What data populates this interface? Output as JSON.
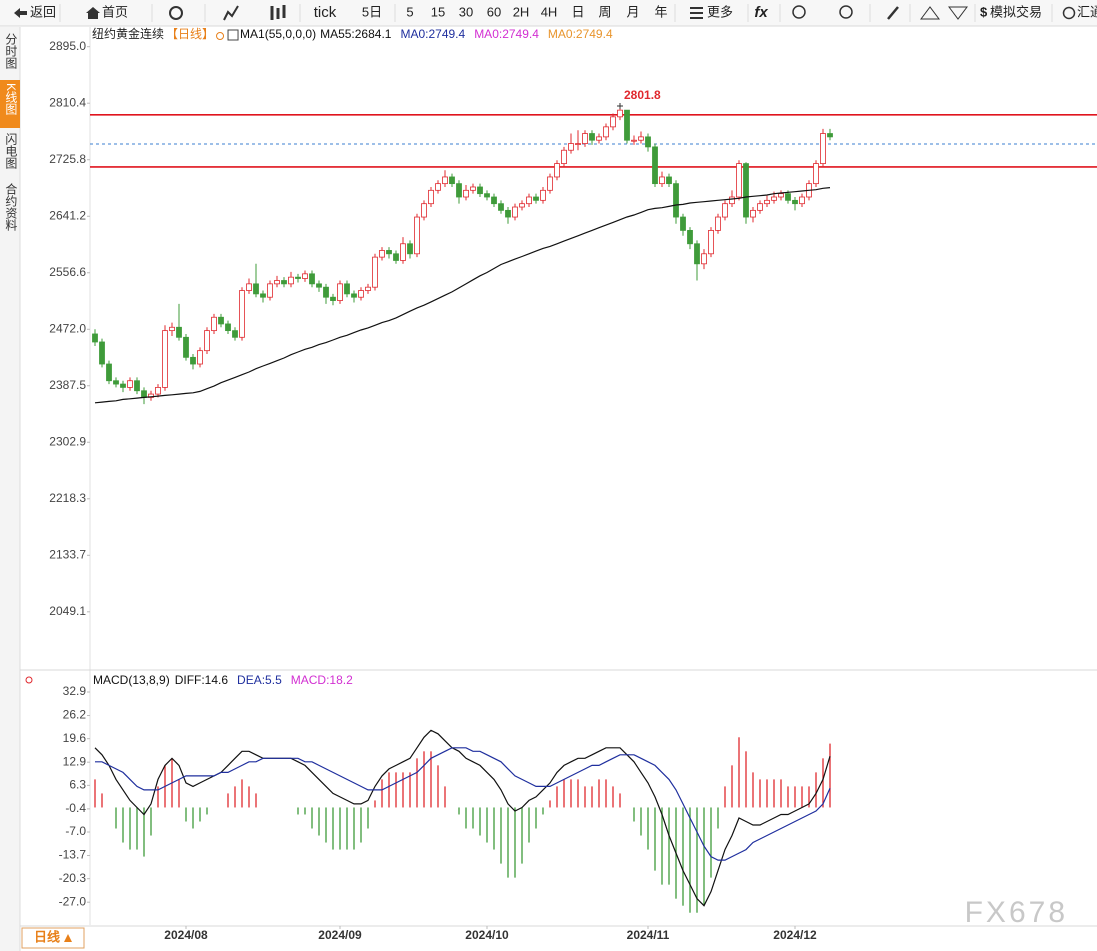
{
  "toolbar": {
    "back": "返回",
    "home": "首页",
    "tick": "tick",
    "periods": [
      "5日",
      "5",
      "15",
      "30",
      "60",
      "2H",
      "4H",
      "日",
      "周",
      "月",
      "年"
    ],
    "more": "更多",
    "fx": "fx",
    "trade": "模拟交易",
    "news": "汇通"
  },
  "sidebar": [
    "分时图",
    "K线图",
    "闪电图",
    "合约资料"
  ],
  "sidebar_active": 1,
  "bottom_tab": "日线",
  "watermark": "FX678",
  "chart_data": [
    {
      "type": "candlestick",
      "title": "纽约黄金连续",
      "period": "【日线】",
      "indicator": "MA1(55,0,0,0)",
      "legend": [
        {
          "text": "MA55:2684.1",
          "color": "#111111"
        },
        {
          "text": "MA0:2749.4",
          "color": "#1f2f9e"
        },
        {
          "text": "MA0:2749.4",
          "color": "#d22fd2"
        },
        {
          "text": "MA0:2749.4",
          "color": "#e8942c"
        }
      ],
      "candles": {
        "up_color": "#e0282e",
        "down_color": "#3f9b3a",
        "open": [
          2465,
          2453,
          2420,
          2395,
          2390,
          2385,
          2395,
          2380,
          2370,
          2375,
          2385,
          2470,
          2475,
          2460,
          2430,
          2420,
          2440,
          2470,
          2490,
          2480,
          2470,
          2460,
          2530,
          2540,
          2525,
          2520,
          2540,
          2545,
          2540,
          2550,
          2548,
          2555,
          2540,
          2535,
          2520,
          2515,
          2540,
          2525,
          2520,
          2530,
          2535,
          2580,
          2590,
          2585,
          2575,
          2600,
          2585,
          2640,
          2660,
          2680,
          2690,
          2700,
          2690,
          2670,
          2680,
          2685,
          2675,
          2670,
          2660,
          2650,
          2640,
          2655,
          2660,
          2670,
          2665,
          2680,
          2700,
          2720,
          2740,
          2750,
          2750,
          2765,
          2755,
          2760,
          2775,
          2790,
          2800,
          2755,
          2755,
          2760,
          2745,
          2690,
          2700,
          2690,
          2640,
          2620,
          2600,
          2570,
          2585,
          2620,
          2640,
          2660,
          2670,
          2720,
          2640,
          2650,
          2660,
          2665,
          2670,
          2675,
          2665,
          2660,
          2670,
          2690,
          2720,
          2765
        ],
        "high": [
          2472,
          2458,
          2425,
          2400,
          2395,
          2400,
          2400,
          2385,
          2380,
          2390,
          2478,
          2482,
          2510,
          2465,
          2435,
          2445,
          2475,
          2495,
          2495,
          2485,
          2475,
          2535,
          2548,
          2570,
          2530,
          2545,
          2552,
          2550,
          2558,
          2555,
          2560,
          2560,
          2545,
          2540,
          2525,
          2545,
          2545,
          2530,
          2535,
          2540,
          2585,
          2595,
          2595,
          2590,
          2610,
          2605,
          2645,
          2665,
          2685,
          2695,
          2710,
          2705,
          2695,
          2688,
          2690,
          2690,
          2680,
          2675,
          2665,
          2655,
          2660,
          2665,
          2675,
          2675,
          2685,
          2705,
          2725,
          2745,
          2765,
          2770,
          2770,
          2770,
          2765,
          2780,
          2795,
          2801.8,
          2800,
          2762,
          2768,
          2765,
          2750,
          2708,
          2705,
          2695,
          2645,
          2625,
          2605,
          2592,
          2625,
          2645,
          2665,
          2680,
          2725,
          2722,
          2655,
          2665,
          2672,
          2678,
          2680,
          2680,
          2670,
          2675,
          2695,
          2725,
          2772,
          2772
        ],
        "low": [
          2447,
          2415,
          2390,
          2385,
          2378,
          2380,
          2375,
          2360,
          2365,
          2370,
          2380,
          2462,
          2455,
          2425,
          2412,
          2415,
          2435,
          2465,
          2475,
          2465,
          2455,
          2455,
          2525,
          2520,
          2512,
          2515,
          2535,
          2535,
          2535,
          2542,
          2543,
          2535,
          2528,
          2510,
          2508,
          2510,
          2520,
          2512,
          2515,
          2525,
          2530,
          2575,
          2578,
          2570,
          2570,
          2578,
          2580,
          2635,
          2655,
          2675,
          2685,
          2685,
          2660,
          2665,
          2675,
          2670,
          2665,
          2655,
          2645,
          2630,
          2635,
          2650,
          2655,
          2660,
          2660,
          2675,
          2695,
          2715,
          2735,
          2740,
          2745,
          2748,
          2750,
          2755,
          2770,
          2785,
          2750,
          2748,
          2750,
          2738,
          2685,
          2685,
          2685,
          2630,
          2612,
          2592,
          2545,
          2562,
          2580,
          2615,
          2635,
          2655,
          2665,
          2630,
          2632,
          2645,
          2655,
          2660,
          2665,
          2660,
          2650,
          2655,
          2665,
          2685,
          2715,
          2755
        ],
        "close": [
          2453,
          2420,
          2395,
          2390,
          2385,
          2395,
          2380,
          2370,
          2375,
          2385,
          2470,
          2475,
          2460,
          2430,
          2420,
          2440,
          2470,
          2490,
          2480,
          2470,
          2460,
          2530,
          2540,
          2525,
          2520,
          2540,
          2545,
          2540,
          2550,
          2548,
          2555,
          2540,
          2535,
          2520,
          2515,
          2540,
          2525,
          2520,
          2530,
          2535,
          2580,
          2590,
          2585,
          2575,
          2600,
          2585,
          2640,
          2660,
          2680,
          2690,
          2700,
          2690,
          2670,
          2680,
          2685,
          2675,
          2670,
          2660,
          2650,
          2640,
          2655,
          2660,
          2670,
          2665,
          2680,
          2700,
          2720,
          2740,
          2750,
          2750,
          2765,
          2755,
          2760,
          2775,
          2790,
          2800,
          2755,
          2755,
          2760,
          2745,
          2690,
          2700,
          2690,
          2640,
          2620,
          2600,
          2570,
          2585,
          2620,
          2640,
          2660,
          2670,
          2720,
          2640,
          2650,
          2660,
          2665,
          2670,
          2675,
          2665,
          2660,
          2670,
          2690,
          2720,
          2765,
          2760
        ]
      },
      "series": [
        {
          "color": "#111111",
          "values": [
            2362,
            2363,
            2364,
            2365,
            2367,
            2368,
            2369,
            2370,
            2371,
            2372,
            2373,
            2374,
            2375,
            2376,
            2377,
            2379,
            2383,
            2387,
            2392,
            2396,
            2400,
            2404,
            2408,
            2413,
            2417,
            2421,
            2425,
            2429,
            2434,
            2438,
            2442,
            2445,
            2449,
            2452,
            2456,
            2460,
            2463,
            2467,
            2471,
            2474,
            2478,
            2482,
            2485,
            2489,
            2494,
            2499,
            2504,
            2508,
            2513,
            2518,
            2523,
            2528,
            2534,
            2540,
            2546,
            2552,
            2557,
            2563,
            2569,
            2573,
            2577,
            2581,
            2585,
            2589,
            2593,
            2596,
            2600,
            2604,
            2608,
            2612,
            2616,
            2620,
            2624,
            2628,
            2632,
            2636,
            2640,
            2643,
            2647,
            2651,
            2653,
            2654,
            2656,
            2658,
            2659,
            2661,
            2662,
            2663,
            2664,
            2665,
            2666,
            2667,
            2668,
            2670,
            2671,
            2672,
            2673,
            2675,
            2676,
            2677,
            2678,
            2679,
            2680,
            2681,
            2683,
            2684.1
          ]
        }
      ],
      "hlines": [
        {
          "value": 2793,
          "color": "#e0141e",
          "style": "solid"
        },
        {
          "value": 2715,
          "color": "#e0141e",
          "style": "solid"
        },
        {
          "value": 2749.4,
          "color": "#3b7fd0",
          "style": "dashed"
        }
      ],
      "annotations": [
        {
          "text": "2801.8",
          "value": 2801.8,
          "color": "#e0282e"
        }
      ],
      "ylim": [
        1965,
        2908
      ],
      "yticks": [
        2049.1,
        2133.7,
        2218.3,
        2302.9,
        2387.5,
        {
          "value": 2472,
          "label": "2472.0"
        },
        2556.6,
        2641.2,
        2725.8,
        2810.4,
        {
          "value": 2895,
          "label": "2895.0"
        }
      ],
      "grid": false
    },
    {
      "type": "macd",
      "title": "MACD(13,8,9)",
      "legend": [
        {
          "text": "DIFF:14.6",
          "color": "#111111"
        },
        {
          "text": "DEA:5.5",
          "color": "#1f2f9e"
        },
        {
          "text": "MACD:18.2",
          "color": "#d22fd2"
        }
      ],
      "series": [
        {
          "color": "#111111",
          "values": [
            17,
            15,
            12,
            8,
            5,
            2,
            0,
            -2,
            1,
            8,
            12,
            14,
            12,
            7,
            6,
            7,
            8,
            9,
            10,
            12,
            14,
            16,
            16,
            15,
            14,
            14,
            14,
            14,
            14,
            13,
            12,
            10,
            8,
            6,
            4,
            3,
            2,
            1,
            1,
            2,
            6,
            9,
            11,
            12,
            13,
            14,
            17,
            20,
            22,
            21,
            19,
            17,
            16,
            14,
            13,
            12,
            10,
            8,
            5,
            1,
            -1,
            0,
            2,
            3,
            5,
            7,
            10,
            12,
            13,
            14,
            14,
            15,
            16,
            17,
            17,
            17,
            15,
            13,
            10,
            7,
            3,
            -2,
            -8,
            -13,
            -18,
            -22,
            -26,
            -28,
            -24,
            -18,
            -12,
            -8,
            -3,
            -4,
            -5,
            -5,
            -4,
            -3,
            -2,
            -2,
            -1,
            0,
            1,
            4,
            8,
            14.6
          ]
        },
        {
          "color": "#1f2f9e",
          "values": [
            13,
            13,
            12,
            11,
            10,
            8,
            6,
            5,
            5,
            5,
            6,
            7,
            8,
            9,
            9,
            9,
            9,
            9,
            10,
            10,
            11,
            12,
            13,
            13,
            14,
            14,
            14,
            14,
            14,
            14,
            13,
            13,
            12,
            11,
            10,
            9,
            8,
            7,
            6,
            5,
            5,
            5,
            6,
            7,
            8,
            9,
            10,
            12,
            14,
            15,
            16,
            17,
            17,
            17,
            16,
            16,
            15,
            14,
            13,
            11,
            9,
            8,
            7,
            6,
            6,
            6,
            7,
            8,
            9,
            10,
            11,
            12,
            12,
            13,
            14,
            15,
            15,
            15,
            14,
            13,
            12,
            10,
            8,
            5,
            1,
            -3,
            -7,
            -11,
            -14,
            -15,
            -15,
            -14,
            -13,
            -12,
            -10,
            -9,
            -8,
            -7,
            -6,
            -5,
            -4,
            -3,
            -2,
            -1,
            1,
            5.5
          ]
        }
      ],
      "histogram": {
        "up_color": "#e0282e",
        "down_color": "#3f9b3a",
        "values": [
          8,
          4,
          0,
          -6,
          -10,
          -12,
          -12,
          -14,
          -8,
          6,
          12,
          14,
          8,
          -4,
          -6,
          -4,
          -2,
          0,
          0,
          4,
          6,
          8,
          6,
          4,
          0,
          0,
          0,
          0,
          0,
          -2,
          -2,
          -6,
          -8,
          -10,
          -12,
          -12,
          -12,
          -12,
          -10,
          -6,
          2,
          8,
          10,
          10,
          10,
          10,
          14,
          16,
          16,
          12,
          6,
          0,
          -2,
          -6,
          -6,
          -8,
          -10,
          -12,
          -16,
          -20,
          -20,
          -16,
          -10,
          -6,
          -2,
          2,
          6,
          8,
          8,
          8,
          6,
          6,
          8,
          8,
          6,
          4,
          0,
          -4,
          -8,
          -12,
          -18,
          -22,
          -22,
          -26,
          -28,
          -30,
          -30,
          -28,
          -20,
          -6,
          6,
          12,
          20,
          16,
          10,
          8,
          8,
          8,
          8,
          6,
          6,
          6,
          6,
          10,
          14,
          18.2
        ]
      },
      "ylim": [
        -33.5,
        34.9
      ],
      "yticks": [
        32.9,
        26.2,
        19.6,
        12.9,
        6.3,
        -0.4,
        {
          "value": -7,
          "label": "-7.0"
        },
        -13.7,
        -20.3,
        {
          "value": -27,
          "label": "-27.0"
        }
      ],
      "xticks": [
        {
          "value": 13,
          "label": "2024/08"
        },
        {
          "value": 35,
          "label": "2024/09"
        },
        {
          "value": 56,
          "label": "2024/10"
        },
        {
          "value": 79,
          "label": "2024/11"
        },
        {
          "value": 100,
          "label": "2024/12"
        }
      ],
      "grid": false
    }
  ]
}
